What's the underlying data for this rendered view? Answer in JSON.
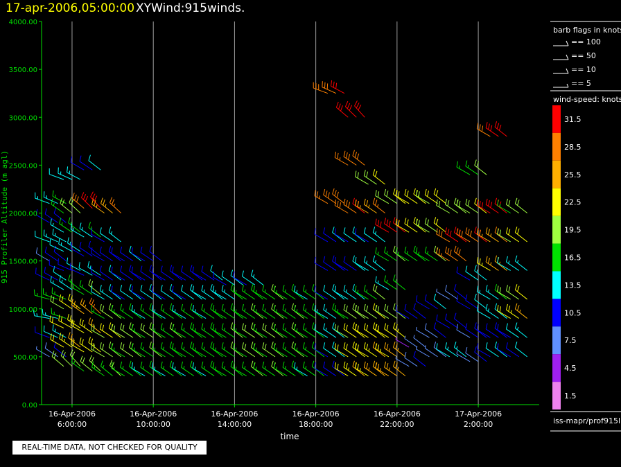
{
  "header": {
    "date_label": "17-apr-2006,05:00:00",
    "plot_name": "XYWind:915winds."
  },
  "quality_note": "REAL-TIME DATA, NOT CHECKED FOR QUALITY",
  "source_label": "iss-mapr/prof915l",
  "legend": {
    "barb_title": "barb flags in knots",
    "barb_entries": [
      "== 100",
      "== 50",
      "== 10",
      "== 5"
    ],
    "speed_title": "wind-speed: knots",
    "speed_scale": [
      {
        "label": "31.5",
        "color": "#ff0000"
      },
      {
        "label": "28.5",
        "color": "#ff8000"
      },
      {
        "label": "25.5",
        "color": "#ffb000"
      },
      {
        "label": "22.5",
        "color": "#ffff00"
      },
      {
        "label": "19.5",
        "color": "#a0ff40"
      },
      {
        "label": "16.5",
        "color": "#00e000"
      },
      {
        "label": "13.5",
        "color": "#00ffff"
      },
      {
        "label": "10.5",
        "color": "#0000ff"
      },
      {
        "label": "7.5",
        "color": "#6090ff"
      },
      {
        "label": "4.5",
        "color": "#a020f0"
      },
      {
        "label": "1.5",
        "color": "#ee82ee"
      }
    ]
  },
  "chart_data": {
    "type": "scatter",
    "title": "17-apr-2006,05:00:00 XYWind:915winds.",
    "xlabel": "time",
    "ylabel": "915 Profiler Altitude (m agl)",
    "ylim": [
      0,
      4000
    ],
    "yticks": [
      "0.00",
      "500.00",
      "1000.00",
      "1500.00",
      "2000.00",
      "2500.00",
      "3000.00",
      "3500.00",
      "4000.00"
    ],
    "xlim_hours": [
      4.5,
      29.0
    ],
    "xticks": [
      {
        "date": "16-Apr-2006",
        "time": "6:00:00",
        "hour": 6
      },
      {
        "date": "16-Apr-2006",
        "time": "10:00:00",
        "hour": 10
      },
      {
        "date": "16-Apr-2006",
        "time": "14:00:00",
        "hour": 14
      },
      {
        "date": "16-Apr-2006",
        "time": "18:00:00",
        "hour": 18
      },
      {
        "date": "16-Apr-2006",
        "time": "22:00:00",
        "hour": 22
      },
      {
        "date": "17-Apr-2006",
        "time": "2:00:00",
        "hour": 26
      }
    ],
    "grid": "vertical",
    "legend_position": "right",
    "colors": {
      "axis": "#00e000",
      "grid": "#a0a0a0",
      "text": "#ffffff"
    },
    "series": [
      {
        "hour": 5.3,
        "points": [
          [
            500,
            8,
            300
          ],
          [
            700,
            12,
            290
          ],
          [
            900,
            14,
            280
          ],
          [
            1100,
            16,
            285
          ],
          [
            1300,
            11,
            295
          ],
          [
            1500,
            9,
            300
          ],
          [
            1700,
            13,
            290
          ],
          [
            1900,
            10,
            300
          ],
          [
            2100,
            14,
            290
          ]
        ]
      },
      {
        "hour": 6.0,
        "points": [
          [
            400,
            19,
            310
          ],
          [
            600,
            23,
            300
          ],
          [
            800,
            22,
            295
          ],
          [
            1000,
            21,
            300
          ],
          [
            1200,
            14,
            300
          ],
          [
            1400,
            11,
            290
          ],
          [
            1600,
            13,
            295
          ],
          [
            1800,
            15,
            300
          ],
          [
            2000,
            18,
            305
          ],
          [
            2350,
            13,
            290
          ]
        ]
      },
      {
        "hour": 7.0,
        "points": [
          [
            350,
            18,
            305
          ],
          [
            550,
            22,
            300
          ],
          [
            750,
            23,
            300
          ],
          [
            950,
            26,
            305
          ],
          [
            1150,
            17,
            300
          ],
          [
            1350,
            12,
            295
          ],
          [
            1550,
            10,
            300
          ],
          [
            1750,
            14,
            300
          ],
          [
            2050,
            30,
            310
          ],
          [
            2450,
            11,
            300
          ]
        ]
      },
      {
        "hour": 8.0,
        "points": [
          [
            300,
            17,
            305
          ],
          [
            500,
            19,
            300
          ],
          [
            700,
            21,
            300
          ],
          [
            900,
            18,
            300
          ],
          [
            1100,
            13,
            300
          ],
          [
            1300,
            11,
            300
          ],
          [
            1500,
            10,
            300
          ],
          [
            1700,
            12,
            300
          ],
          [
            2000,
            26,
            305
          ]
        ]
      },
      {
        "hour": 9.0,
        "points": [
          [
            300,
            16,
            300
          ],
          [
            500,
            18,
            300
          ],
          [
            700,
            19,
            300
          ],
          [
            900,
            16,
            300
          ],
          [
            1100,
            12,
            300
          ],
          [
            1300,
            10,
            300
          ],
          [
            1500,
            11,
            300
          ]
        ]
      },
      {
        "hour": 10.0,
        "points": [
          [
            300,
            15,
            300
          ],
          [
            500,
            17,
            300
          ],
          [
            700,
            18,
            300
          ],
          [
            900,
            15,
            300
          ],
          [
            1100,
            12,
            300
          ],
          [
            1300,
            10,
            300
          ],
          [
            1500,
            10,
            300
          ]
        ]
      },
      {
        "hour": 11.0,
        "points": [
          [
            300,
            15,
            300
          ],
          [
            500,
            16,
            300
          ],
          [
            700,
            17,
            300
          ],
          [
            900,
            15,
            300
          ],
          [
            1100,
            12,
            300
          ],
          [
            1300,
            10,
            300
          ]
        ]
      },
      {
        "hour": 12.0,
        "points": [
          [
            300,
            15,
            300
          ],
          [
            500,
            16,
            300
          ],
          [
            700,
            16,
            300
          ],
          [
            900,
            15,
            300
          ],
          [
            1100,
            12,
            300
          ],
          [
            1300,
            10,
            300
          ]
        ]
      },
      {
        "hour": 13.0,
        "points": [
          [
            300,
            15,
            300
          ],
          [
            500,
            16,
            300
          ],
          [
            700,
            16,
            300
          ],
          [
            900,
            15,
            300
          ],
          [
            1100,
            13,
            300
          ],
          [
            1300,
            11,
            300
          ]
        ]
      },
      {
        "hour": 14.0,
        "points": [
          [
            300,
            16,
            300
          ],
          [
            500,
            17,
            300
          ],
          [
            700,
            17,
            300
          ],
          [
            900,
            16,
            300
          ],
          [
            1100,
            14,
            300
          ],
          [
            1250,
            12,
            300
          ]
        ]
      },
      {
        "hour": 15.0,
        "points": [
          [
            300,
            17,
            300
          ],
          [
            500,
            18,
            300
          ],
          [
            700,
            18,
            300
          ],
          [
            900,
            17,
            300
          ],
          [
            1100,
            16,
            300
          ],
          [
            1250,
            12,
            300
          ]
        ]
      },
      {
        "hour": 16.0,
        "points": [
          [
            300,
            17,
            300
          ],
          [
            500,
            18,
            300
          ],
          [
            700,
            18,
            300
          ],
          [
            900,
            17,
            300
          ],
          [
            1100,
            17,
            300
          ]
        ]
      },
      {
        "hour": 17.0,
        "points": [
          [
            300,
            16,
            300
          ],
          [
            500,
            17,
            300
          ],
          [
            700,
            17,
            300
          ],
          [
            900,
            17,
            300
          ],
          [
            1100,
            16,
            300
          ]
        ]
      },
      {
        "hour": 18.0,
        "points": [
          [
            300,
            15,
            300
          ],
          [
            500,
            16,
            300
          ],
          [
            700,
            16,
            300
          ],
          [
            900,
            16,
            300
          ],
          [
            1100,
            15,
            300
          ]
        ]
      },
      {
        "hour": 19.0,
        "points": [
          [
            300,
            10,
            300
          ],
          [
            500,
            12,
            300
          ],
          [
            700,
            13,
            300
          ],
          [
            900,
            14,
            300
          ],
          [
            1100,
            12,
            300
          ],
          [
            1400,
            10,
            300
          ],
          [
            1700,
            11,
            300
          ],
          [
            2100,
            28,
            300
          ],
          [
            3250,
            29,
            290
          ]
        ]
      },
      {
        "hour": 20.0,
        "points": [
          [
            300,
            23,
            300
          ],
          [
            500,
            22,
            300
          ],
          [
            700,
            21,
            300
          ],
          [
            900,
            18,
            300
          ],
          [
            1100,
            13,
            300
          ],
          [
            1400,
            11,
            300
          ],
          [
            1700,
            12,
            300
          ],
          [
            2000,
            29,
            300
          ],
          [
            2500,
            28,
            300
          ],
          [
            3000,
            31,
            310
          ]
        ]
      },
      {
        "hour": 21.0,
        "points": [
          [
            300,
            24,
            300
          ],
          [
            500,
            23,
            300
          ],
          [
            700,
            22,
            300
          ],
          [
            900,
            20,
            300
          ],
          [
            1100,
            17,
            300
          ],
          [
            1400,
            13,
            300
          ],
          [
            1700,
            12,
            300
          ],
          [
            2000,
            26,
            300
          ],
          [
            2300,
            20,
            300
          ]
        ]
      },
      {
        "hour": 22.0,
        "points": [
          [
            300,
            25,
            300
          ],
          [
            500,
            24,
            300
          ],
          [
            700,
            22,
            300
          ],
          [
            900,
            19,
            300
          ],
          [
            1200,
            15,
            300
          ],
          [
            1500,
            17,
            300
          ],
          [
            1800,
            31,
            300
          ],
          [
            2100,
            20,
            300
          ]
        ]
      },
      {
        "hour": 23.0,
        "points": [
          [
            400,
            8,
            300
          ],
          [
            600,
            6,
            300
          ],
          [
            900,
            10,
            300
          ],
          [
            1500,
            16,
            300
          ],
          [
            1800,
            22,
            300
          ],
          [
            2100,
            22,
            300
          ]
        ]
      },
      {
        "hour": 24.0,
        "points": [
          [
            500,
            7,
            300
          ],
          [
            700,
            8,
            300
          ],
          [
            1000,
            11,
            300
          ],
          [
            1500,
            17,
            300
          ],
          [
            1800,
            20,
            300
          ],
          [
            2100,
            21,
            300
          ]
        ]
      },
      {
        "hour": 25.0,
        "points": [
          [
            500,
            13,
            300
          ],
          [
            800,
            10,
            300
          ],
          [
            1100,
            8,
            300
          ],
          [
            1500,
            28,
            300
          ],
          [
            1700,
            30,
            300
          ],
          [
            2000,
            19,
            300
          ]
        ]
      },
      {
        "hour": 26.0,
        "points": [
          [
            450,
            8,
            300
          ],
          [
            700,
            9,
            300
          ],
          [
            1000,
            11,
            300
          ],
          [
            1300,
            12,
            300
          ],
          [
            1700,
            29,
            300
          ],
          [
            2000,
            20,
            300
          ],
          [
            2400,
            17,
            300
          ]
        ]
      },
      {
        "hour": 27.0,
        "points": [
          [
            500,
            12,
            300
          ],
          [
            700,
            10,
            300
          ],
          [
            900,
            13,
            300
          ],
          [
            1100,
            14,
            300
          ],
          [
            1400,
            24,
            300
          ],
          [
            1700,
            26,
            300
          ],
          [
            2000,
            31,
            300
          ],
          [
            2800,
            30,
            300
          ]
        ]
      },
      {
        "hour": 28.0,
        "points": [
          [
            500,
            11,
            300
          ],
          [
            700,
            12,
            300
          ],
          [
            900,
            23,
            300
          ],
          [
            1100,
            20,
            300
          ],
          [
            1400,
            13,
            300
          ],
          [
            1700,
            21,
            300
          ],
          [
            2000,
            18,
            300
          ]
        ]
      }
    ]
  }
}
